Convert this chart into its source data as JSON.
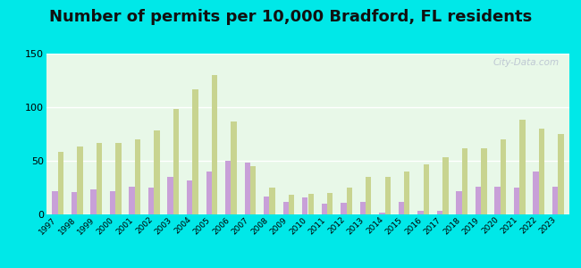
{
  "title": "Number of permits per 10,000 Bradford, FL residents",
  "years": [
    1997,
    1998,
    1999,
    2000,
    2001,
    2002,
    2003,
    2004,
    2005,
    2006,
    2007,
    2008,
    2009,
    2010,
    2011,
    2012,
    2013,
    2014,
    2015,
    2016,
    2017,
    2018,
    2019,
    2020,
    2021,
    2022,
    2023
  ],
  "bradford": [
    22,
    21,
    23,
    22,
    26,
    25,
    35,
    32,
    40,
    50,
    48,
    17,
    12,
    16,
    10,
    11,
    12,
    2,
    12,
    3,
    3,
    22,
    26,
    26,
    25,
    40,
    26
  ],
  "florida": [
    58,
    63,
    67,
    67,
    70,
    78,
    98,
    117,
    130,
    87,
    45,
    25,
    18,
    19,
    20,
    25,
    35,
    35,
    40,
    47,
    53,
    62,
    62,
    70,
    88,
    80,
    75
  ],
  "bradford_color": "#c8a0d8",
  "florida_color": "#c8d490",
  "bg_color_top": "#d8f0e8",
  "bg_color_bottom": "#e8f8e8",
  "background_outer": "#00e8e8",
  "title_fontsize": 13,
  "ylim": [
    0,
    150
  ],
  "yticks": [
    0,
    50,
    100,
    150
  ],
  "watermark": "City-Data.com"
}
